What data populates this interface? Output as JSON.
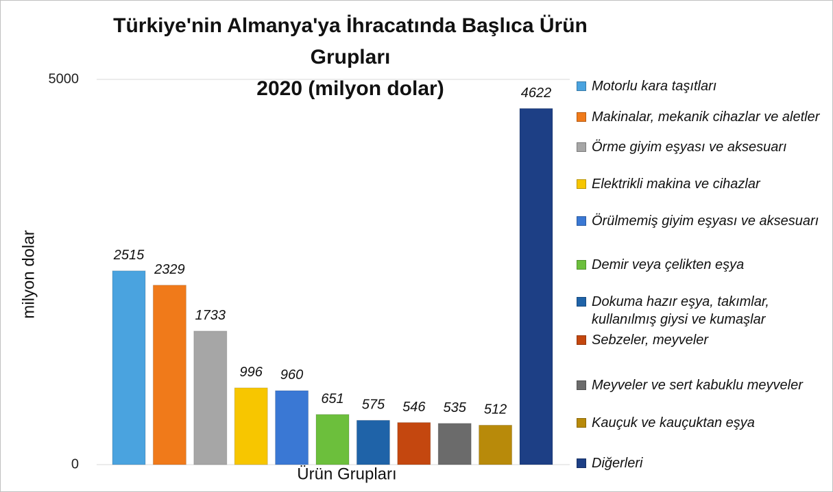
{
  "chart_data": {
    "type": "bar",
    "title": "Türkiye'nin Almanya'ya İhracatında Başlıca Ürün Grupları\n2020 (milyon dolar)",
    "x_label": "Ürün Grupları",
    "y_label": "milyon dolar",
    "categories": [
      null
    ],
    "ylim": [
      0,
      5000
    ],
    "yticks": [
      0,
      5000
    ],
    "grid": true,
    "legend": "right",
    "series": [
      {
        "name": "Motorlu kara taşıtları",
        "color": "#4aa3df",
        "values": [
          2515
        ]
      },
      {
        "name": "Makinalar, mekanik cihazlar ve aletler",
        "color": "#f07a1a",
        "values": [
          2329
        ]
      },
      {
        "name": "Örme giyim eşyası ve aksesuarı",
        "color": "#a6a6a6",
        "values": [
          1733
        ]
      },
      {
        "name": "Elektrikli makina ve cihazlar",
        "color": "#f7c600",
        "values": [
          996
        ]
      },
      {
        "name": "Örülmemiş giyim eşyası ve aksesuarı",
        "color": "#3a78d4",
        "values": [
          960
        ]
      },
      {
        "name": "Demir veya çelikten eşya",
        "color": "#6cbf3c",
        "values": [
          651
        ]
      },
      {
        "name": "Dokuma hazır eşya, takımlar, kullanılmış giysi ve kumaşlar",
        "color": "#1f63a8",
        "values": [
          575
        ]
      },
      {
        "name": "Sebzeler, meyveler",
        "color": "#c4470f",
        "values": [
          546
        ]
      },
      {
        "name": "Meyveler ve sert kabuklu meyveler",
        "color": "#6b6b6b",
        "values": [
          535
        ]
      },
      {
        "name": "Kauçuk ve kauçuktan eşya",
        "color": "#b88a0a",
        "values": [
          512
        ]
      },
      {
        "name": "Diğerleri",
        "color": "#1d3f85",
        "values": [
          4622
        ]
      }
    ]
  }
}
